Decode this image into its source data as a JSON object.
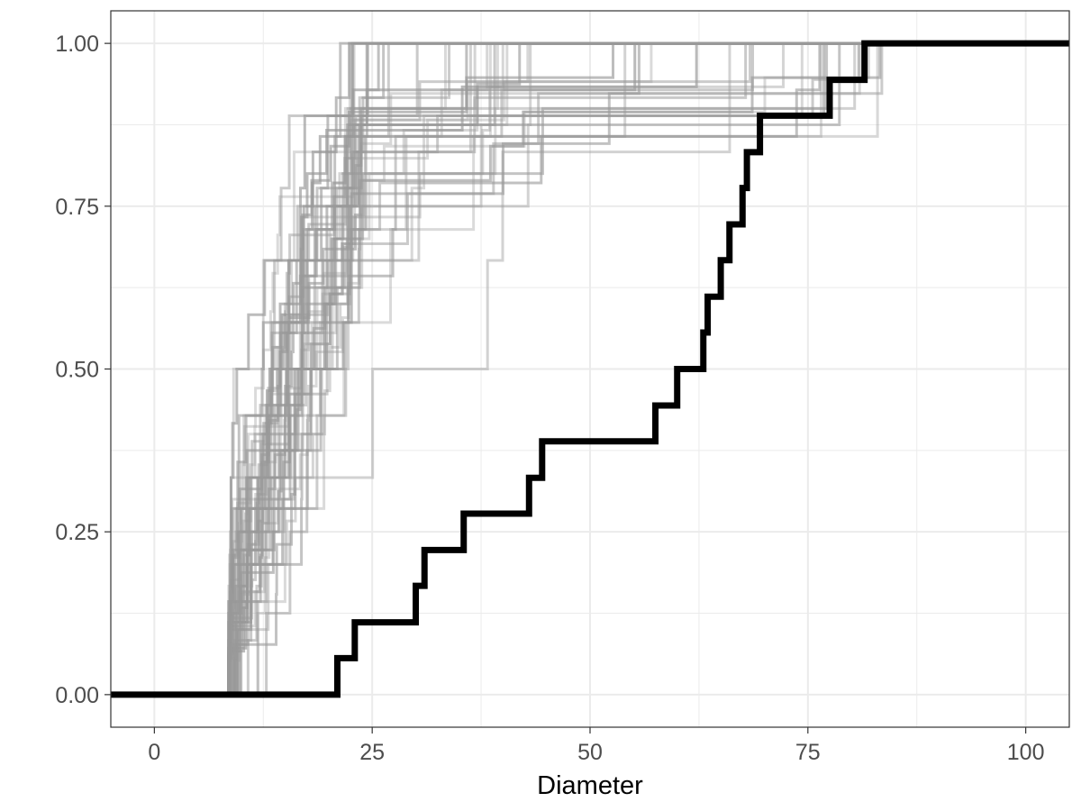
{
  "chart_data": {
    "type": "line",
    "step": true,
    "title": "",
    "xlabel": "Diameter",
    "ylabel": "",
    "xlim": [
      -5,
      105
    ],
    "ylim": [
      -0.05,
      1.05
    ],
    "x_ticks": [
      0,
      25,
      50,
      75,
      100
    ],
    "x_tick_labels": [
      "0",
      "25",
      "50",
      "75",
      "100"
    ],
    "y_ticks": [
      0,
      0.25,
      0.5,
      0.75,
      1
    ],
    "y_tick_labels": [
      "0.00",
      "0.25",
      "0.50",
      "0.75",
      "1.00"
    ],
    "grid": true,
    "legend": "none",
    "colors": {
      "highlight": "#000000",
      "simulations": "#999999",
      "grid": "#ebebeb",
      "panel_border": "#333333"
    },
    "highlight_series": {
      "x": [
        21,
        23,
        30,
        31,
        35.5,
        43,
        44.5,
        57.5,
        60,
        63,
        63.5,
        65,
        66,
        67.5,
        68,
        69.5,
        77.5,
        81.5
      ],
      "y": [
        0.056,
        0.111,
        0.167,
        0.222,
        0.278,
        0.333,
        0.389,
        0.444,
        0.5,
        0.556,
        0.611,
        0.667,
        0.722,
        0.778,
        0.833,
        0.889,
        0.944,
        1.0
      ]
    },
    "simulated_series_summary": {
      "count": 50,
      "x_range": [
        8.5,
        85
      ],
      "note_color": "semi-transparent grey"
    }
  }
}
